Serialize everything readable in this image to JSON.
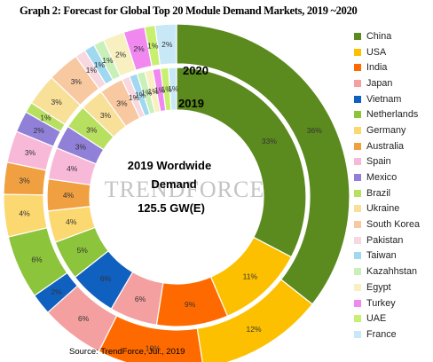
{
  "title": "Graph 2: Forecast for Global  Top 20 Module Demand Markets, 2019 ~2020",
  "source": "Source:  TrendForce,  Jul.,  2019",
  "watermark": "TRENDFORCE",
  "center": {
    "line1": "2019 Wordwide",
    "line2": "Demand",
    "line3": "125.5 GW(E)"
  },
  "chart_data": {
    "type": "donut",
    "categories": [
      "China",
      "USA",
      "India",
      "Japan",
      "Vietnam",
      "Netherlands",
      "Germany",
      "Australia",
      "Spain",
      "Mexico",
      "Brazil",
      "Ukraine",
      "South  Korea",
      "Pakistan",
      "Taiwan",
      "Kazahhstan",
      "Egypt",
      "Turkey",
      "UAE",
      "France"
    ],
    "colors": [
      "#5b8a1e",
      "#fcc000",
      "#ff6a00",
      "#f4a0a0",
      "#1060c0",
      "#8cc43c",
      "#fcd870",
      "#f0a040",
      "#f8b8d8",
      "#9080d8",
      "#b8e060",
      "#f8e098",
      "#f8c8a0",
      "#f8d8e0",
      "#a0d8f0",
      "#c8f0b8",
      "#f8f0c0",
      "#f088f0",
      "#c8f070",
      "#c8e8f8"
    ],
    "series": [
      {
        "name": "2020",
        "values": [
          36,
          12,
          10,
          6,
          2,
          6,
          4,
          3,
          3,
          2,
          1,
          3,
          3,
          1,
          1,
          1,
          2,
          2,
          1,
          2
        ],
        "labels": [
          "36%",
          "12%",
          "10%",
          "6%",
          "2%",
          "6%",
          "4%",
          "3%",
          "3%",
          "2%",
          "1%",
          "3%",
          "3%",
          "1%",
          "1%",
          "1%",
          "2%",
          "2%",
          "1%",
          "2%"
        ]
      },
      {
        "name": "2019",
        "values": [
          33,
          11,
          9,
          6,
          6,
          5,
          4,
          4,
          4,
          3,
          3,
          3,
          3,
          1,
          1,
          1,
          1,
          1,
          1,
          1
        ],
        "labels": [
          "33%",
          "11%",
          "9%",
          "6%",
          "6%",
          "5%",
          "4%",
          "4%",
          "4%",
          "3%",
          "3%",
          "3%",
          "3%",
          "1%",
          "1%",
          "1%",
          "1%",
          "1%",
          "1%",
          "1%"
        ]
      }
    ]
  }
}
